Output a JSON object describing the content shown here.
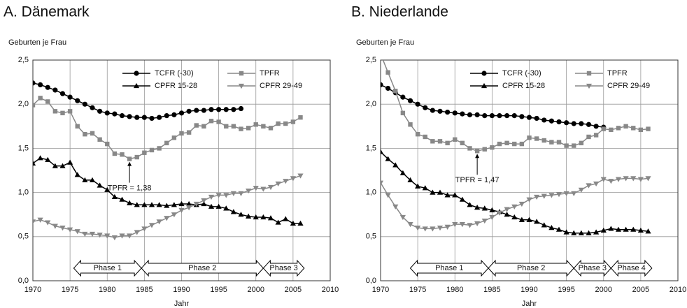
{
  "chart_data": [
    {
      "type": "line",
      "title": "A.   Dänemark",
      "y_label": "Geburten je Frau",
      "x_label": "Jahr",
      "x": [
        1970,
        1971,
        1972,
        1973,
        1974,
        1975,
        1976,
        1977,
        1978,
        1979,
        1980,
        1981,
        1982,
        1983,
        1984,
        1985,
        1986,
        1987,
        1988,
        1989,
        1990,
        1991,
        1992,
        1993,
        1994,
        1995,
        1996,
        1997,
        1998,
        1999,
        2000,
        2001,
        2002,
        2003,
        2004,
        2005,
        2006
      ],
      "xlim": [
        1970,
        2010
      ],
      "xticks": [
        1970,
        1975,
        1980,
        1985,
        1990,
        1995,
        2000,
        2005,
        2010
      ],
      "ylim": [
        0,
        2.5
      ],
      "yticks": [
        {
          "value": 0,
          "label": "0,0"
        },
        {
          "value": 0.5,
          "label": "0,5"
        },
        {
          "value": 1,
          "label": "1,0"
        },
        {
          "value": 1.5,
          "label": "1,5"
        },
        {
          "value": 2,
          "label": "2,0"
        },
        {
          "value": 2.5,
          "label": "2,5"
        }
      ],
      "grid": true,
      "series": [
        {
          "name": "TCFR (-30)",
          "color": "#000000",
          "marker": "circle",
          "values": [
            2.24,
            2.22,
            2.19,
            2.16,
            2.12,
            2.08,
            2.04,
            2.0,
            1.96,
            1.92,
            1.9,
            1.89,
            1.87,
            1.86,
            1.85,
            1.85,
            1.84,
            1.85,
            1.87,
            1.88,
            1.9,
            1.92,
            1.93,
            1.93,
            1.94,
            1.94,
            1.94,
            1.94,
            1.95,
            null,
            null,
            null,
            null,
            null,
            null,
            null,
            null
          ]
        },
        {
          "name": "TPFR",
          "color": "#888888",
          "marker": "square",
          "values": [
            1.99,
            2.07,
            2.03,
            1.92,
            1.9,
            1.92,
            1.75,
            1.66,
            1.67,
            1.6,
            1.55,
            1.44,
            1.43,
            1.38,
            1.4,
            1.45,
            1.48,
            1.5,
            1.56,
            1.62,
            1.67,
            1.68,
            1.76,
            1.75,
            1.81,
            1.8,
            1.75,
            1.75,
            1.72,
            1.73,
            1.77,
            1.75,
            1.73,
            1.78,
            1.78,
            1.8,
            1.85
          ]
        },
        {
          "name": "CPFR 15-28",
          "color": "#000000",
          "marker": "triangle-up",
          "values": [
            1.33,
            1.39,
            1.37,
            1.3,
            1.3,
            1.34,
            1.2,
            1.14,
            1.14,
            1.08,
            1.03,
            0.95,
            0.92,
            0.88,
            0.86,
            0.86,
            0.86,
            0.86,
            0.85,
            0.86,
            0.87,
            0.87,
            0.86,
            0.87,
            0.84,
            0.84,
            0.82,
            0.78,
            0.75,
            0.73,
            0.72,
            0.72,
            0.71,
            0.66,
            0.7,
            0.65,
            0.65
          ]
        },
        {
          "name": "CPFR 29-49",
          "color": "#888888",
          "marker": "triangle-down",
          "values": [
            0.67,
            0.69,
            0.66,
            0.62,
            0.6,
            0.58,
            0.56,
            0.53,
            0.53,
            0.52,
            0.51,
            0.49,
            0.51,
            0.51,
            0.55,
            0.59,
            0.63,
            0.67,
            0.71,
            0.75,
            0.8,
            0.83,
            0.87,
            0.91,
            0.95,
            0.97,
            0.97,
            0.99,
            0.99,
            1.02,
            1.05,
            1.04,
            1.06,
            1.1,
            1.13,
            1.16,
            1.19
          ]
        }
      ],
      "annotations": [
        {
          "text": "TPFR = 1,38",
          "x": 1983,
          "y": 1.38
        }
      ],
      "phases": [
        {
          "label": "Phase 1",
          "start": 1975.5,
          "end": 1984.6
        },
        {
          "label": "Phase 2",
          "start": 1984.6,
          "end": 2001
        },
        {
          "label": "Phase 3",
          "start": 2001,
          "end": 2006.5
        }
      ]
    },
    {
      "type": "line",
      "title": "B.   Niederlande",
      "y_label": "Geburten je Frau",
      "x_label": "Jahr",
      "x": [
        1970,
        1971,
        1972,
        1973,
        1974,
        1975,
        1976,
        1977,
        1978,
        1979,
        1980,
        1981,
        1982,
        1983,
        1984,
        1985,
        1986,
        1987,
        1988,
        1989,
        1990,
        1991,
        1992,
        1993,
        1994,
        1995,
        1996,
        1997,
        1998,
        1999,
        2000,
        2001,
        2002,
        2003,
        2004,
        2005,
        2006
      ],
      "xlim": [
        1970,
        2010
      ],
      "xticks": [
        1970,
        1975,
        1980,
        1985,
        1990,
        1995,
        2000,
        2005,
        2010
      ],
      "ylim": [
        0,
        2.5
      ],
      "yticks": [
        {
          "value": 0,
          "label": "0,0"
        },
        {
          "value": 0.5,
          "label": "0,5"
        },
        {
          "value": 1,
          "label": "1,0"
        },
        {
          "value": 1.5,
          "label": "1,5"
        },
        {
          "value": 2,
          "label": "2,0"
        },
        {
          "value": 2.5,
          "label": "2,5"
        }
      ],
      "grid": true,
      "series": [
        {
          "name": "TCFR (-30)",
          "color": "#000000",
          "marker": "circle",
          "values": [
            2.22,
            2.18,
            2.13,
            2.08,
            2.04,
            2.0,
            1.96,
            1.93,
            1.92,
            1.91,
            1.9,
            1.89,
            1.88,
            1.88,
            1.87,
            1.87,
            1.87,
            1.87,
            1.87,
            1.86,
            1.85,
            1.84,
            1.82,
            1.81,
            1.8,
            1.79,
            1.78,
            1.78,
            1.77,
            1.75,
            1.74,
            null,
            null,
            null,
            null,
            null,
            null
          ]
        },
        {
          "name": "TPFR",
          "color": "#888888",
          "marker": "square",
          "values": [
            2.57,
            2.36,
            2.15,
            1.9,
            1.77,
            1.66,
            1.63,
            1.58,
            1.58,
            1.56,
            1.6,
            1.56,
            1.5,
            1.47,
            1.49,
            1.51,
            1.55,
            1.56,
            1.55,
            1.55,
            1.62,
            1.61,
            1.59,
            1.57,
            1.57,
            1.53,
            1.53,
            1.56,
            1.63,
            1.65,
            1.72,
            1.71,
            1.73,
            1.75,
            1.73,
            1.71,
            1.72
          ]
        },
        {
          "name": "CPFR 15-28",
          "color": "#000000",
          "marker": "triangle-up",
          "values": [
            1.46,
            1.38,
            1.31,
            1.22,
            1.14,
            1.07,
            1.05,
            1.0,
            1.0,
            0.97,
            0.97,
            0.92,
            0.86,
            0.83,
            0.82,
            0.8,
            0.78,
            0.75,
            0.72,
            0.69,
            0.69,
            0.67,
            0.63,
            0.6,
            0.58,
            0.55,
            0.54,
            0.54,
            0.54,
            0.55,
            0.57,
            0.59,
            0.58,
            0.58,
            0.58,
            0.57,
            0.56
          ]
        },
        {
          "name": "CPFR 29-49",
          "color": "#888888",
          "marker": "triangle-down",
          "values": [
            1.11,
            0.97,
            0.84,
            0.72,
            0.64,
            0.6,
            0.59,
            0.59,
            0.6,
            0.61,
            0.64,
            0.64,
            0.63,
            0.65,
            0.68,
            0.72,
            0.77,
            0.81,
            0.84,
            0.87,
            0.92,
            0.95,
            0.96,
            0.97,
            0.98,
            0.99,
            0.99,
            1.03,
            1.08,
            1.1,
            1.15,
            1.13,
            1.15,
            1.16,
            1.16,
            1.15,
            1.16
          ]
        }
      ],
      "annotations": [
        {
          "text": "TPFR = 1,47",
          "x": 1983,
          "y": 1.47
        }
      ],
      "phases": [
        {
          "label": "Phase 1",
          "start": 1974,
          "end": 1984.5
        },
        {
          "label": "Phase 2",
          "start": 1984.5,
          "end": 1996
        },
        {
          "label": "Phase 3",
          "start": 1996,
          "end": 2001
        },
        {
          "label": "Phase 4",
          "start": 2001,
          "end": 2006.5
        }
      ]
    }
  ]
}
